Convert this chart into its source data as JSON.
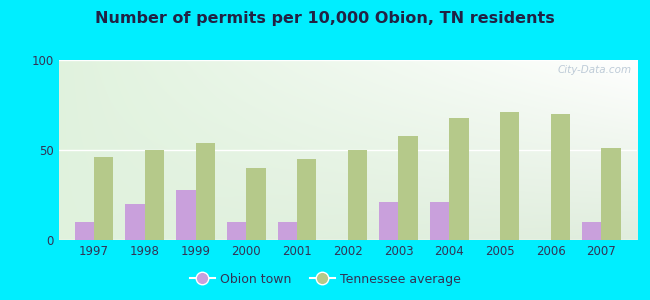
{
  "title": "Number of permits per 10,000 Obion, TN residents",
  "years": [
    1997,
    1998,
    1999,
    2000,
    2001,
    2002,
    2003,
    2004,
    2005,
    2006,
    2007
  ],
  "obion_values": [
    10,
    20,
    28,
    10,
    10,
    0,
    21,
    21,
    0,
    0,
    10
  ],
  "tn_values": [
    46,
    50,
    54,
    40,
    45,
    50,
    58,
    68,
    71,
    70,
    51
  ],
  "obion_color": "#c9a0dc",
  "tn_color": "#b5c98a",
  "ylim": [
    0,
    100
  ],
  "yticks": [
    0,
    50,
    100
  ],
  "outer_bg": "#00eeff",
  "legend_obion": "Obion town",
  "legend_tn": "Tennessee average",
  "watermark": "City-Data.com",
  "title_color": "#222244",
  "tick_color": "#333355"
}
